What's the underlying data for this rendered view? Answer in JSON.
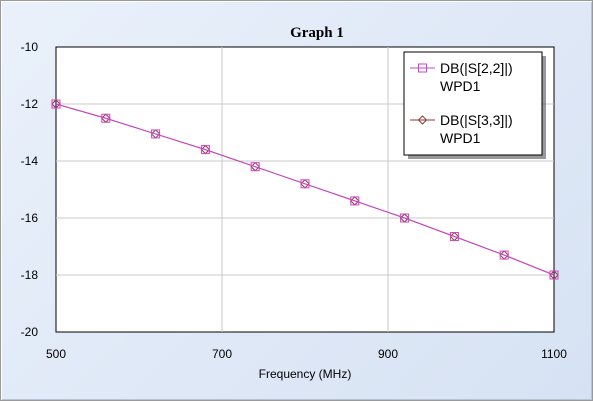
{
  "chart_data": {
    "type": "line",
    "title": "Graph 1",
    "xlabel": "Frequency (MHz)",
    "ylabel": "",
    "xlim": [
      500,
      1100
    ],
    "ylim": [
      -20,
      -10
    ],
    "xticks": [
      500,
      700,
      900,
      1100
    ],
    "yticks": [
      -10,
      -12,
      -14,
      -16,
      -18,
      -20
    ],
    "grid": true,
    "legend_position": "top-right",
    "series": [
      {
        "name": "DB(|S[2,2]|)",
        "name_line2": "WPD1",
        "color": "#cc44cc",
        "marker": "square",
        "x": [
          500,
          560,
          620,
          680,
          740,
          800,
          860,
          920,
          980,
          1040,
          1100
        ],
        "y": [
          -12.0,
          -12.5,
          -13.05,
          -13.6,
          -14.2,
          -14.8,
          -15.4,
          -16.0,
          -16.65,
          -17.3,
          -18.0
        ]
      },
      {
        "name": "DB(|S[3,3]|)",
        "name_line2": "WPD1",
        "color": "#8b3a3a",
        "marker": "diamond",
        "x": [
          500,
          560,
          620,
          680,
          740,
          800,
          860,
          920,
          980,
          1040,
          1100
        ],
        "y": [
          -12.0,
          -12.5,
          -13.05,
          -13.6,
          -14.2,
          -14.8,
          -15.4,
          -16.0,
          -16.65,
          -17.3,
          -18.0
        ]
      }
    ]
  }
}
